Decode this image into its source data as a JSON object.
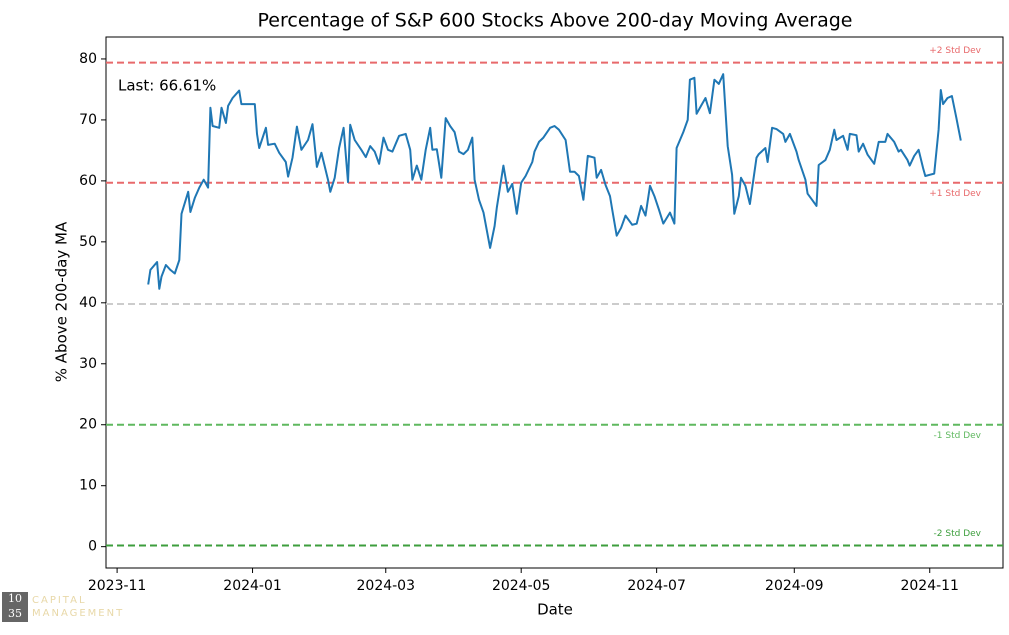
{
  "chart_data": {
    "type": "line",
    "title": "Percentage of S&P 600 Stocks Above 200-day Moving Average",
    "xlabel": "Date",
    "ylabel": "% Above 200-day MA",
    "annotation": "Last: 66.61%",
    "color": "#1f77b4",
    "x": [
      "2023-11-15",
      "2023-11-16",
      "2023-11-19",
      "2023-11-20",
      "2023-11-21",
      "2023-11-23",
      "2023-11-25",
      "2023-11-27",
      "2023-11-29",
      "2023-11-30",
      "2023-12-03",
      "2023-12-04",
      "2023-12-06",
      "2023-12-08",
      "2023-12-10",
      "2023-12-12",
      "2023-12-13",
      "2023-12-14",
      "2023-12-17",
      "2023-12-18",
      "2023-12-20",
      "2023-12-21",
      "2023-12-23",
      "2023-12-26",
      "2023-12-27",
      "2023-12-30",
      "2024-01-02",
      "2024-01-03",
      "2024-01-04",
      "2024-01-07",
      "2024-01-08",
      "2024-01-11",
      "2024-01-13",
      "2024-01-16",
      "2024-01-17",
      "2024-01-19",
      "2024-01-21",
      "2024-01-23",
      "2024-01-26",
      "2024-01-28",
      "2024-01-30",
      "2024-02-01",
      "2024-02-04",
      "2024-02-05",
      "2024-02-07",
      "2024-02-09",
      "2024-02-11",
      "2024-02-13",
      "2024-02-14",
      "2024-02-16",
      "2024-02-19",
      "2024-02-21",
      "2024-02-23",
      "2024-02-25",
      "2024-02-27",
      "2024-02-29",
      "2024-03-02",
      "2024-03-04",
      "2024-03-07",
      "2024-03-10",
      "2024-03-12",
      "2024-03-13",
      "2024-03-15",
      "2024-03-17",
      "2024-03-19",
      "2024-03-21",
      "2024-03-22",
      "2024-03-24",
      "2024-03-26",
      "2024-03-28",
      "2024-03-30",
      "2024-04-01",
      "2024-04-03",
      "2024-04-05",
      "2024-04-07",
      "2024-04-09",
      "2024-04-10",
      "2024-04-12",
      "2024-04-14",
      "2024-04-17",
      "2024-04-19",
      "2024-04-20",
      "2024-04-23",
      "2024-04-25",
      "2024-04-27",
      "2024-04-29",
      "2024-05-01",
      "2024-05-03",
      "2024-05-06",
      "2024-05-07",
      "2024-05-09",
      "2024-05-11",
      "2024-05-14",
      "2024-05-16",
      "2024-05-18",
      "2024-05-21",
      "2024-05-23",
      "2024-05-25",
      "2024-05-27",
      "2024-05-29",
      "2024-05-31",
      "2024-06-03",
      "2024-06-04",
      "2024-06-06",
      "2024-06-08",
      "2024-06-10",
      "2024-06-11",
      "2024-06-13",
      "2024-06-15",
      "2024-06-17",
      "2024-06-20",
      "2024-06-22",
      "2024-06-24",
      "2024-06-26",
      "2024-06-28",
      "2024-06-30",
      "2024-07-02",
      "2024-07-04",
      "2024-07-07",
      "2024-07-09",
      "2024-07-10",
      "2024-07-13",
      "2024-07-15",
      "2024-07-16",
      "2024-07-18",
      "2024-07-19",
      "2024-07-21",
      "2024-07-23",
      "2024-07-25",
      "2024-07-27",
      "2024-07-29",
      "2024-07-31",
      "2024-08-02",
      "2024-08-04",
      "2024-08-05",
      "2024-08-07",
      "2024-08-08",
      "2024-08-10",
      "2024-08-12",
      "2024-08-15",
      "2024-08-16",
      "2024-08-19",
      "2024-08-20",
      "2024-08-22",
      "2024-08-24",
      "2024-08-27",
      "2024-08-28",
      "2024-08-30",
      "2024-09-02",
      "2024-09-03",
      "2024-09-06",
      "2024-09-07",
      "2024-09-09",
      "2024-09-11",
      "2024-09-12",
      "2024-09-15",
      "2024-09-17",
      "2024-09-19",
      "2024-09-20",
      "2024-09-23",
      "2024-09-25",
      "2024-09-26",
      "2024-09-29",
      "2024-09-30",
      "2024-10-02",
      "2024-10-04",
      "2024-10-07",
      "2024-10-09",
      "2024-10-12",
      "2024-10-13",
      "2024-10-16",
      "2024-10-18",
      "2024-10-19",
      "2024-10-22",
      "2024-10-23",
      "2024-10-25",
      "2024-10-27",
      "2024-10-29",
      "2024-10-30",
      "2024-11-01",
      "2024-11-03",
      "2024-11-05",
      "2024-11-06",
      "2024-11-07",
      "2024-11-09",
      "2024-11-11",
      "2024-11-13",
      "2024-11-15"
    ],
    "values": [
      43,
      45.4,
      46.7,
      42.3,
      44.3,
      46.2,
      45.4,
      44.8,
      47,
      54.6,
      58.2,
      54.9,
      57.2,
      58.9,
      60.2,
      58.9,
      72,
      69,
      68.7,
      72,
      69.5,
      72.3,
      73.6,
      74.8,
      72.6,
      72.6,
      72.6,
      67.7,
      65.4,
      68.7,
      65.9,
      66.1,
      64.6,
      63.1,
      60.7,
      63.8,
      68.9,
      65.1,
      66.7,
      69.3,
      62.3,
      64.6,
      60.2,
      58.2,
      60.5,
      65.4,
      68.7,
      59.8,
      69.2,
      66.7,
      65.1,
      63.9,
      65.7,
      64.8,
      62.8,
      67.1,
      65.1,
      64.8,
      67.4,
      67.7,
      65.1,
      60.2,
      62.5,
      60.2,
      65.1,
      68.7,
      65.1,
      65.2,
      60.5,
      70.3,
      69,
      68,
      64.8,
      64.4,
      65.1,
      67.1,
      60.2,
      56.9,
      54.8,
      49,
      52.6,
      55.6,
      62.5,
      58.2,
      59.5,
      54.6,
      59.7,
      60.8,
      63.1,
      64.8,
      66.4,
      67.1,
      68.7,
      69,
      68.4,
      66.7,
      61.5,
      61.5,
      60.8,
      56.9,
      64.1,
      63.8,
      60.5,
      61.8,
      59.3,
      57.5,
      55.3,
      51,
      52.3,
      54.3,
      52.8,
      53,
      55.9,
      54.3,
      59.2,
      57.5,
      55.3,
      53,
      54.8,
      53,
      65.4,
      68,
      70,
      76.6,
      76.9,
      71,
      72.3,
      73.6,
      71.1,
      76.6,
      75.9,
      77.5,
      65.7,
      61,
      54.6,
      57.5,
      60.5,
      59.2,
      56.2,
      63.8,
      64.4,
      65.4,
      63.1,
      68.7,
      68.5,
      67.7,
      66.4,
      67.7,
      64.8,
      63.4,
      60.2,
      57.9,
      56.9,
      55.9,
      62.6,
      63.4,
      65.1,
      68.4,
      66.7,
      67.4,
      65.1,
      67.7,
      67.5,
      64.8,
      66.1,
      64.3,
      62.8,
      66.4,
      66.4,
      67.7,
      66.4,
      64.8,
      65.1,
      63.4,
      62.5,
      64.1,
      65.1,
      62.1,
      60.8,
      61,
      61.2,
      68.4,
      74.9,
      72.6,
      73.6,
      73.9,
      70.3,
      66.61
    ],
    "xlim": [
      "2023-10-27",
      "2024-12-04"
    ],
    "xticks": [
      {
        "value": "2023-11-01",
        "label": "2023-11"
      },
      {
        "value": "2024-01-01",
        "label": "2024-01"
      },
      {
        "value": "2024-03-01",
        "label": "2024-03"
      },
      {
        "value": "2024-05-01",
        "label": "2024-05"
      },
      {
        "value": "2024-07-01",
        "label": "2024-07"
      },
      {
        "value": "2024-09-01",
        "label": "2024-09"
      },
      {
        "value": "2024-11-01",
        "label": "2024-11"
      }
    ],
    "ylim": [
      -3.5,
      83.6
    ],
    "yticks": [
      0,
      10,
      20,
      30,
      40,
      50,
      60,
      70,
      80
    ],
    "hlines": [
      {
        "value": 79.4,
        "label": "+2 Std Dev",
        "color": "#e8696b"
      },
      {
        "value": 59.7,
        "label": "+1 Std Dev",
        "color": "#e8696b"
      },
      {
        "value": 39.8,
        "color": "#cccccc"
      },
      {
        "value": 20,
        "label": "-1 Std Dev",
        "color": "#5fb85f"
      },
      {
        "value": 0.2,
        "label": "-2 Std Dev",
        "color": "#3d9e3d"
      }
    ]
  },
  "watermark": {
    "number_top": "10",
    "number_bottom": "35",
    "line1": "CAPITAL",
    "line2": "MANAGEMENT"
  }
}
